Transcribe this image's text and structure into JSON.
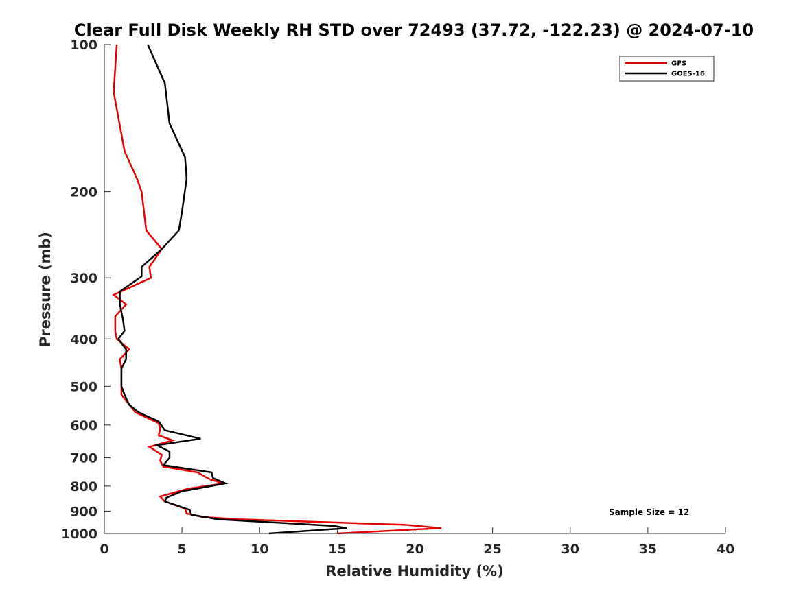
{
  "chart_data": {
    "type": "line",
    "title": "Clear Full Disk Weekly RH STD over 72493 (37.72, -122.23) @ 2024-07-10",
    "xlabel": "Relative Humidity (%)",
    "ylabel": "Pressure (mb)",
    "xlim": [
      0,
      40
    ],
    "ylim": [
      100,
      1000
    ],
    "y_scale": "log",
    "y_reversed": true,
    "x_ticks": [
      "0",
      "5",
      "10",
      "15",
      "20",
      "25",
      "30",
      "35",
      "40"
    ],
    "y_ticks": [
      "100",
      "200",
      "300",
      "400",
      "500",
      "600",
      "700",
      "800",
      "900",
      "1000"
    ],
    "grid": false,
    "legend_position": "top-right",
    "annotation": "Sample Size = 12",
    "series": [
      {
        "name": "GFS",
        "color": "#e60000",
        "points": [
          [
            0.8,
            100
          ],
          [
            0.6,
            125
          ],
          [
            1.3,
            165
          ],
          [
            2.1,
            188
          ],
          [
            2.4,
            200
          ],
          [
            2.7,
            240
          ],
          [
            3.7,
            262
          ],
          [
            2.9,
            285
          ],
          [
            3.0,
            300
          ],
          [
            0.6,
            325
          ],
          [
            1.4,
            340
          ],
          [
            0.7,
            360
          ],
          [
            0.7,
            385
          ],
          [
            0.8,
            400
          ],
          [
            1.6,
            420
          ],
          [
            1.0,
            440
          ],
          [
            1.1,
            460
          ],
          [
            1.1,
            500
          ],
          [
            1.1,
            520
          ],
          [
            1.5,
            540
          ],
          [
            2.0,
            565
          ],
          [
            3.5,
            595
          ],
          [
            3.6,
            610
          ],
          [
            3.5,
            630
          ],
          [
            4.4,
            645
          ],
          [
            2.9,
            665
          ],
          [
            3.7,
            690
          ],
          [
            3.6,
            710
          ],
          [
            3.8,
            730
          ],
          [
            6.0,
            750
          ],
          [
            6.8,
            775
          ],
          [
            7.7,
            790
          ],
          [
            5.4,
            810
          ],
          [
            3.6,
            840
          ],
          [
            3.9,
            860
          ],
          [
            5.2,
            890
          ],
          [
            5.3,
            910
          ],
          [
            6.3,
            925
          ],
          [
            8.6,
            935
          ],
          [
            19.4,
            960
          ],
          [
            21.7,
            975
          ],
          [
            15.0,
            1000
          ]
        ]
      },
      {
        "name": "GOES-16",
        "color": "#000000",
        "points": [
          [
            2.8,
            100
          ],
          [
            3.9,
            120
          ],
          [
            4.2,
            145
          ],
          [
            5.2,
            170
          ],
          [
            5.3,
            188
          ],
          [
            5.0,
            220
          ],
          [
            4.8,
            240
          ],
          [
            3.7,
            262
          ],
          [
            2.4,
            285
          ],
          [
            2.4,
            298
          ],
          [
            1.0,
            320
          ],
          [
            1.0,
            340
          ],
          [
            1.2,
            365
          ],
          [
            1.3,
            385
          ],
          [
            0.9,
            400
          ],
          [
            1.4,
            420
          ],
          [
            1.4,
            440
          ],
          [
            1.1,
            460
          ],
          [
            1.1,
            500
          ],
          [
            1.3,
            520
          ],
          [
            1.6,
            545
          ],
          [
            2.2,
            565
          ],
          [
            3.5,
            590
          ],
          [
            3.9,
            615
          ],
          [
            6.2,
            640
          ],
          [
            3.4,
            660
          ],
          [
            4.2,
            680
          ],
          [
            4.2,
            700
          ],
          [
            3.8,
            725
          ],
          [
            6.9,
            750
          ],
          [
            7.0,
            770
          ],
          [
            7.8,
            790
          ],
          [
            5.0,
            820
          ],
          [
            4.0,
            845
          ],
          [
            3.9,
            860
          ],
          [
            5.5,
            895
          ],
          [
            5.6,
            915
          ],
          [
            7.3,
            935
          ],
          [
            14.8,
            965
          ],
          [
            15.6,
            975
          ],
          [
            10.6,
            1000
          ]
        ]
      }
    ]
  }
}
